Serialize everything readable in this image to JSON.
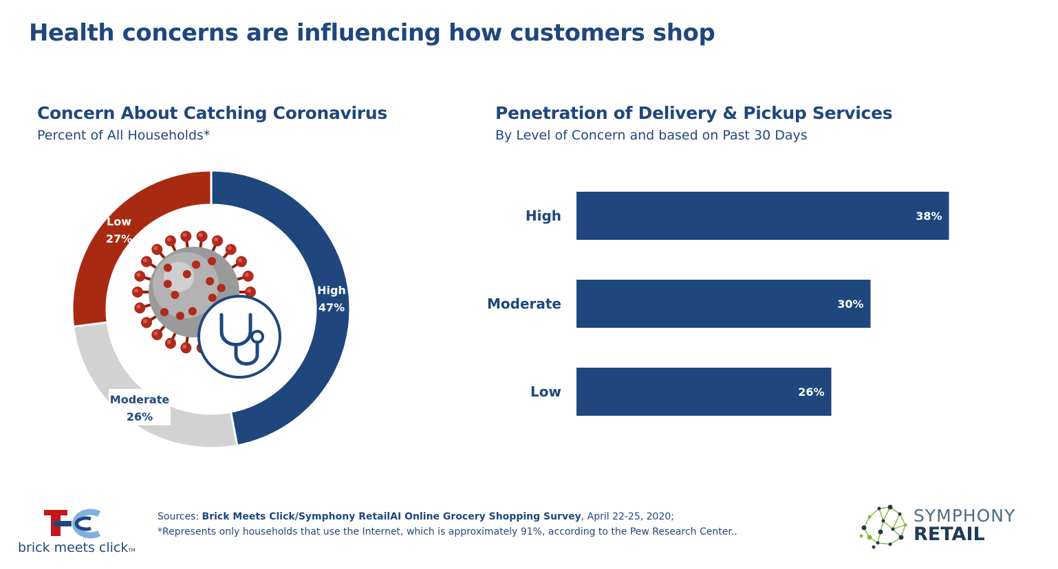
{
  "page": {
    "title": "Health concerns are influencing how customers shop"
  },
  "colors": {
    "navy": "#1f477d",
    "red": "#a92a12",
    "gray": "#d2d2d2",
    "green": "#8ab83a"
  },
  "chart_data": [
    {
      "type": "pie",
      "variant": "donut",
      "title": "Concern About Catching Coronavirus",
      "subtitle": "Percent of All Households*",
      "slices": [
        {
          "name": "High",
          "value": 47,
          "label": "47%",
          "color": "#1f477d"
        },
        {
          "name": "Moderate",
          "value": 26,
          "label": "26%",
          "color": "#d2d2d2"
        },
        {
          "name": "Low",
          "value": 27,
          "label": "27%",
          "color": "#a92a12"
        }
      ],
      "center_icons": [
        "coronavirus-icon",
        "stethoscope-icon"
      ]
    },
    {
      "type": "bar",
      "orientation": "horizontal",
      "title": "Penetration of Delivery & Pickup Services",
      "subtitle": "By Level of Concern and based on Past 30 Days",
      "categories": [
        "High",
        "Moderate",
        "Low"
      ],
      "values": [
        38,
        30,
        26
      ],
      "value_labels": [
        "38%",
        "30%",
        "26%"
      ],
      "xlim": [
        0,
        40
      ],
      "color": "#1f477d",
      "grid": false
    }
  ],
  "footer": {
    "sources_prefix": "Sources: ",
    "sources_bold": "Brick Meets Click/Symphony RetailAI Online Grocery Shopping Survey",
    "sources_suffix": ", April 22-25, 2020;",
    "note": "*Represents only households that use the Internet, which is approximately 91%, according to the Pew Research Center..",
    "logo_left_text": "brick meets click",
    "logo_left_tm": "TM",
    "logo_right_line1": "SYMPHONY",
    "logo_right_line2": "RETAIL"
  }
}
